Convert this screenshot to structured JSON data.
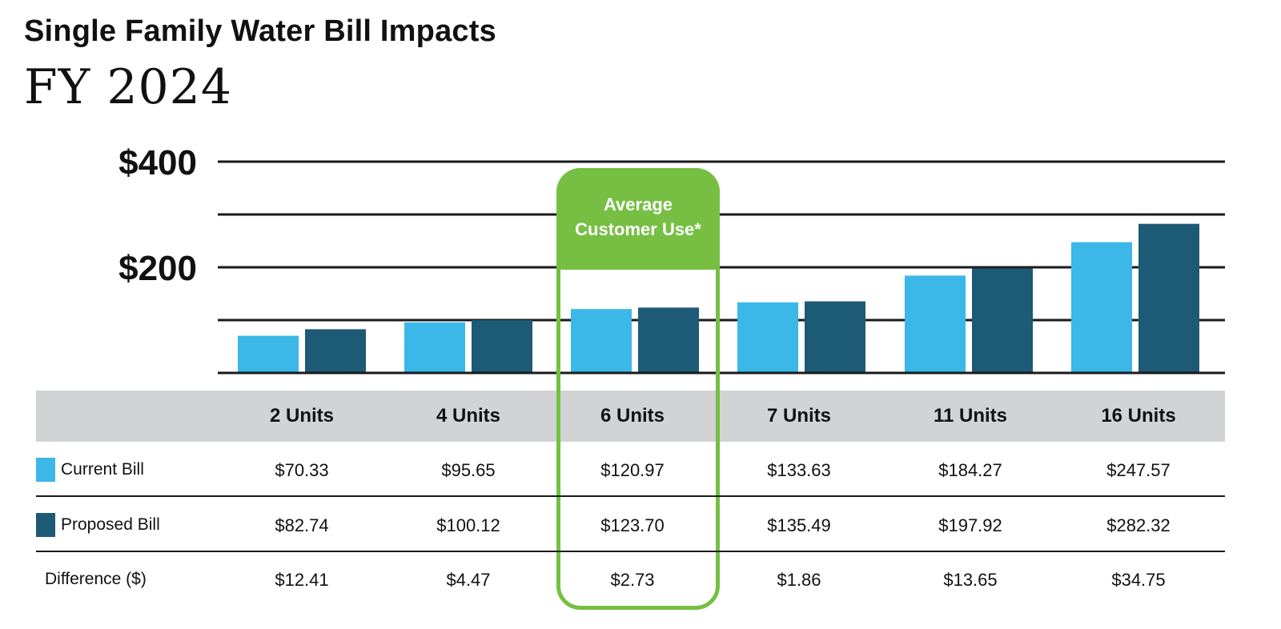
{
  "title": "Single Family Water Bill Impacts",
  "subtitle": "FY 2024",
  "highlight": {
    "line1": "Average",
    "line2": "Customer Use*",
    "category_index": 2,
    "color": "#76bf43"
  },
  "colors": {
    "current": "#3bb7e8",
    "proposed": "#1d5a75",
    "header_bg": "#d1d3d4"
  },
  "chart_data": {
    "type": "bar",
    "categories": [
      "2 Units",
      "4 Units",
      "6 Units",
      "7 Units",
      "11 Units",
      "16 Units"
    ],
    "series": [
      {
        "name": "Current Bill",
        "values": [
          70.33,
          95.65,
          120.97,
          133.63,
          184.27,
          247.57
        ]
      },
      {
        "name": "Proposed Bill",
        "values": [
          82.74,
          100.12,
          123.7,
          135.49,
          197.92,
          282.32
        ]
      }
    ],
    "ylim": [
      0,
      400
    ],
    "yticks": [
      {
        "value": 400,
        "label": "$400"
      },
      {
        "value": 300,
        "label": ""
      },
      {
        "value": 200,
        "label": "$200"
      },
      {
        "value": 100,
        "label": ""
      },
      {
        "value": 0,
        "label": ""
      }
    ],
    "grid": true
  },
  "table": {
    "headers": [
      "2 Units",
      "4 Units",
      "6 Units",
      "7 Units",
      "11 Units",
      "16 Units"
    ],
    "rows": [
      {
        "label": "Current Bill",
        "values": [
          "$70.33",
          "$95.65",
          "$120.97",
          "$133.63",
          "$184.27",
          "$247.57"
        ]
      },
      {
        "label": "Proposed Bill",
        "values": [
          "$82.74",
          "$100.12",
          "$123.70",
          "$135.49",
          "$197.92",
          "$282.32"
        ]
      },
      {
        "label": "Difference ($)",
        "values": [
          "$12.41",
          "$4.47",
          "$2.73",
          "$1.86",
          "$13.65",
          "$34.75"
        ]
      }
    ]
  }
}
